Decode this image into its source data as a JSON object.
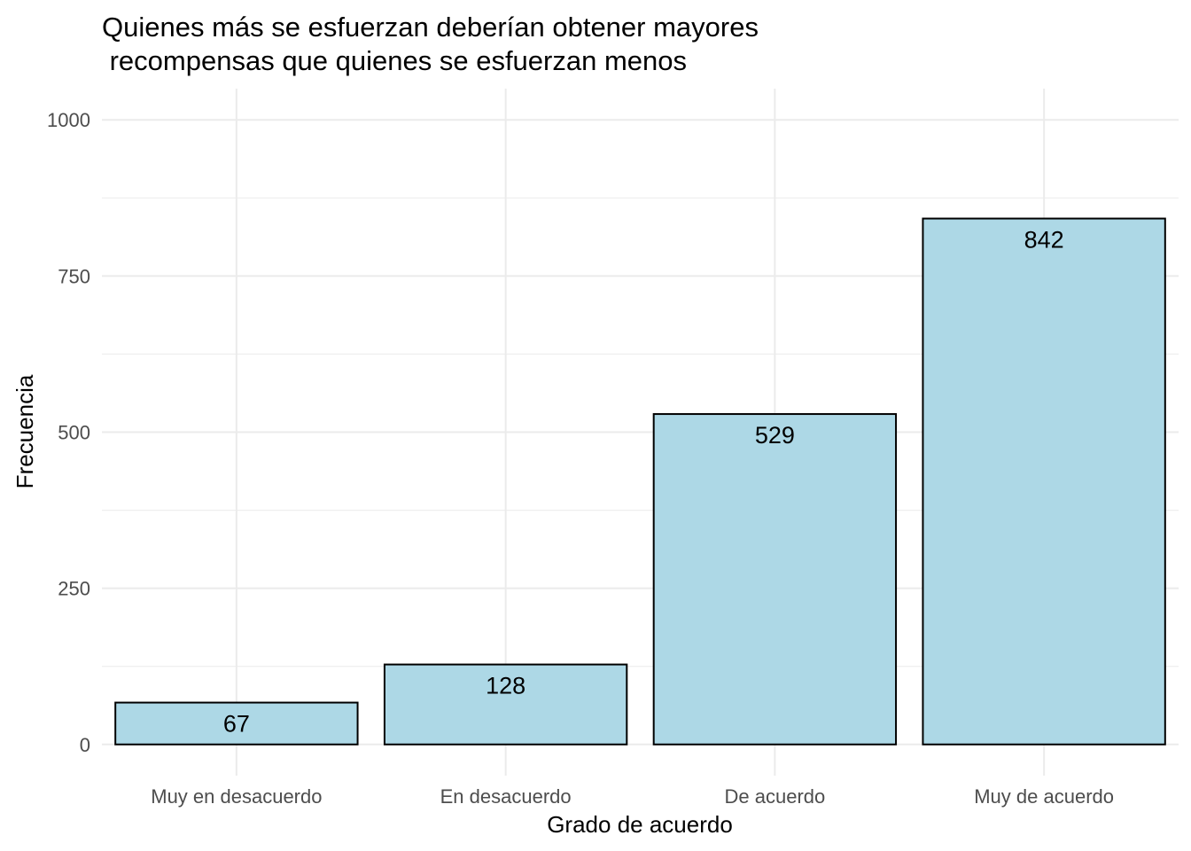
{
  "chart_data": {
    "type": "bar",
    "title": [
      "Quienes más se esfuerzan deberían obtener mayores",
      " recompensas que quienes se esfuerzan menos"
    ],
    "xlabel": "Grado de acuerdo",
    "ylabel": "Frecuencia",
    "categories": [
      "Muy en desacuerdo",
      "En desacuerdo",
      "De acuerdo",
      "Muy de acuerdo"
    ],
    "values": [
      67,
      128,
      529,
      842
    ],
    "data_labels": [
      "67",
      "128",
      "529",
      "842"
    ],
    "y_ticks": [
      0,
      250,
      500,
      750,
      1000
    ],
    "y_tick_labels": [
      "0",
      "250",
      "500",
      "750",
      "1000"
    ],
    "ylim": [
      -50,
      1050
    ],
    "bar_fill": "#add8e6",
    "bar_stroke": "#000000",
    "grid": true,
    "grid_color": "#ebebeb",
    "legend": "none"
  }
}
